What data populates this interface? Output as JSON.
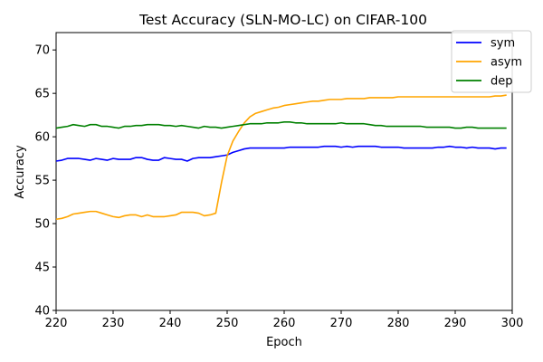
{
  "chart_data": {
    "type": "line",
    "title": "Test Accuracy (SLN-MO-LC) on CIFAR-100",
    "xlabel": "Epoch",
    "ylabel": "Accuracy",
    "xlim": [
      220,
      300
    ],
    "ylim": [
      40,
      72
    ],
    "xticks": [
      220,
      230,
      240,
      250,
      260,
      270,
      280,
      290,
      300
    ],
    "yticks": [
      40,
      45,
      50,
      55,
      60,
      65,
      70
    ],
    "grid": false,
    "legend_position": "top-right",
    "series": [
      {
        "name": "sym",
        "color": "#0000ff",
        "x": [
          220,
          221,
          222,
          223,
          224,
          225,
          226,
          227,
          228,
          229,
          230,
          231,
          232,
          233,
          234,
          235,
          236,
          237,
          238,
          239,
          240,
          241,
          242,
          243,
          244,
          245,
          246,
          247,
          248,
          249,
          250,
          251,
          252,
          253,
          254,
          255,
          256,
          257,
          258,
          259,
          260,
          261,
          262,
          263,
          264,
          265,
          266,
          267,
          268,
          269,
          270,
          271,
          272,
          273,
          274,
          275,
          276,
          277,
          278,
          279,
          280,
          281,
          282,
          283,
          284,
          285,
          286,
          287,
          288,
          289,
          290,
          291,
          292,
          293,
          294,
          295,
          296,
          297,
          298,
          299
        ],
        "values": [
          57.2,
          57.3,
          57.5,
          57.5,
          57.5,
          57.4,
          57.3,
          57.5,
          57.4,
          57.3,
          57.5,
          57.4,
          57.4,
          57.4,
          57.6,
          57.6,
          57.4,
          57.3,
          57.3,
          57.6,
          57.5,
          57.4,
          57.4,
          57.2,
          57.5,
          57.6,
          57.6,
          57.6,
          57.7,
          57.8,
          57.9,
          58.2,
          58.4,
          58.6,
          58.7,
          58.7,
          58.7,
          58.7,
          58.7,
          58.7,
          58.7,
          58.8,
          58.8,
          58.8,
          58.8,
          58.8,
          58.8,
          58.9,
          58.9,
          58.9,
          58.8,
          58.9,
          58.8,
          58.9,
          58.9,
          58.9,
          58.9,
          58.8,
          58.8,
          58.8,
          58.8,
          58.7,
          58.7,
          58.7,
          58.7,
          58.7,
          58.7,
          58.8,
          58.8,
          58.9,
          58.8,
          58.8,
          58.7,
          58.8,
          58.7,
          58.7,
          58.7,
          58.6,
          58.7,
          58.7
        ]
      },
      {
        "name": "asym",
        "color": "#ffa500",
        "x": [
          220,
          221,
          222,
          223,
          224,
          225,
          226,
          227,
          228,
          229,
          230,
          231,
          232,
          233,
          234,
          235,
          236,
          237,
          238,
          239,
          240,
          241,
          242,
          243,
          244,
          245,
          246,
          247,
          248,
          249,
          250,
          251,
          252,
          253,
          254,
          255,
          256,
          257,
          258,
          259,
          260,
          261,
          262,
          263,
          264,
          265,
          266,
          267,
          268,
          269,
          270,
          271,
          272,
          273,
          274,
          275,
          276,
          277,
          278,
          279,
          280,
          281,
          282,
          283,
          284,
          285,
          286,
          287,
          288,
          289,
          290,
          291,
          292,
          293,
          294,
          295,
          296,
          297,
          298,
          299
        ],
        "values": [
          50.5,
          50.6,
          50.8,
          51.1,
          51.2,
          51.3,
          51.4,
          51.4,
          51.2,
          51.0,
          50.8,
          50.7,
          50.9,
          51.0,
          51.0,
          50.8,
          51.0,
          50.8,
          50.8,
          50.8,
          50.9,
          51.0,
          51.3,
          51.3,
          51.3,
          51.2,
          50.9,
          51.0,
          51.2,
          54.7,
          57.8,
          59.5,
          60.6,
          61.6,
          62.3,
          62.7,
          62.9,
          63.1,
          63.3,
          63.4,
          63.6,
          63.7,
          63.8,
          63.9,
          64.0,
          64.1,
          64.1,
          64.2,
          64.3,
          64.3,
          64.3,
          64.4,
          64.4,
          64.4,
          64.4,
          64.5,
          64.5,
          64.5,
          64.5,
          64.5,
          64.6,
          64.6,
          64.6,
          64.6,
          64.6,
          64.6,
          64.6,
          64.6,
          64.6,
          64.6,
          64.6,
          64.6,
          64.6,
          64.6,
          64.6,
          64.6,
          64.6,
          64.7,
          64.7,
          64.8
        ]
      },
      {
        "name": "dep",
        "color": "#008000",
        "x": [
          220,
          221,
          222,
          223,
          224,
          225,
          226,
          227,
          228,
          229,
          230,
          231,
          232,
          233,
          234,
          235,
          236,
          237,
          238,
          239,
          240,
          241,
          242,
          243,
          244,
          245,
          246,
          247,
          248,
          249,
          250,
          251,
          252,
          253,
          254,
          255,
          256,
          257,
          258,
          259,
          260,
          261,
          262,
          263,
          264,
          265,
          266,
          267,
          268,
          269,
          270,
          271,
          272,
          273,
          274,
          275,
          276,
          277,
          278,
          279,
          280,
          281,
          282,
          283,
          284,
          285,
          286,
          287,
          288,
          289,
          290,
          291,
          292,
          293,
          294,
          295,
          296,
          297,
          298,
          299
        ],
        "values": [
          61.0,
          61.1,
          61.2,
          61.4,
          61.3,
          61.2,
          61.4,
          61.4,
          61.2,
          61.2,
          61.1,
          61.0,
          61.2,
          61.2,
          61.3,
          61.3,
          61.4,
          61.4,
          61.4,
          61.3,
          61.3,
          61.2,
          61.3,
          61.2,
          61.1,
          61.0,
          61.2,
          61.1,
          61.1,
          61.0,
          61.1,
          61.2,
          61.3,
          61.4,
          61.5,
          61.5,
          61.5,
          61.6,
          61.6,
          61.6,
          61.7,
          61.7,
          61.6,
          61.6,
          61.5,
          61.5,
          61.5,
          61.5,
          61.5,
          61.5,
          61.6,
          61.5,
          61.5,
          61.5,
          61.5,
          61.4,
          61.3,
          61.3,
          61.2,
          61.2,
          61.2,
          61.2,
          61.2,
          61.2,
          61.2,
          61.1,
          61.1,
          61.1,
          61.1,
          61.1,
          61.0,
          61.0,
          61.1,
          61.1,
          61.0,
          61.0,
          61.0,
          61.0,
          61.0,
          61.0
        ]
      }
    ]
  }
}
